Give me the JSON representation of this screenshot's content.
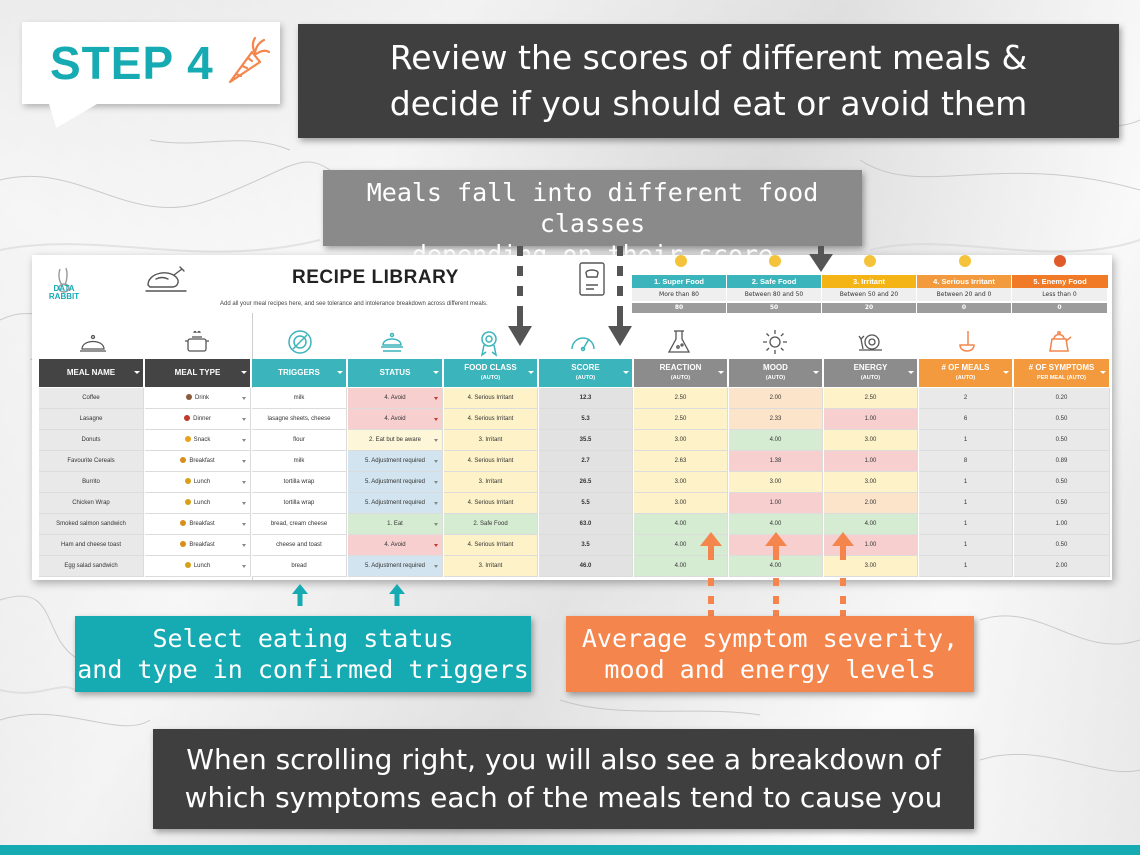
{
  "step": {
    "label": "STEP 4",
    "icon": "carrot-icon"
  },
  "banner_top": {
    "line1": "Review the scores of different meals &",
    "line2": "decide if you should eat or avoid them"
  },
  "callout_classes": {
    "line1": "Meals fall into different food classes",
    "line2": "depending on their score"
  },
  "callout_status": {
    "line1": "Select eating status",
    "line2": "and type in confirmed triggers"
  },
  "callout_average": {
    "line1": "Average symptom severity,",
    "line2": "mood and energy levels"
  },
  "banner_bottom": {
    "line1": "When scrolling right, you will also see a breakdown of",
    "line2": "which symptoms each of the meals tend to cause you"
  },
  "sheet": {
    "logo_text_1": "DATA",
    "logo_text_2": "RABBIT",
    "title": "RECIPE LIBRARY",
    "subtitle": "Add all your meal recipes here, and see tolerance and intolerance breakdown across different meals."
  },
  "legend": [
    {
      "head": "1. Super Food",
      "desc": "More than 80",
      "value": "80",
      "color": "#3cb4bb"
    },
    {
      "head": "2. Safe Food",
      "desc": "Between 80 and 50",
      "value": "50",
      "color": "#3cb4bb"
    },
    {
      "head": "3. Irritant",
      "desc": "Between 50 and 20",
      "value": "20",
      "color": "#f5b416"
    },
    {
      "head": "4. Serious Irritant",
      "desc": "Between 20 and 0",
      "value": "0",
      "color": "#f39a3f"
    },
    {
      "head": "5. Enemy Food",
      "desc": "Less than 0",
      "value": "0",
      "color": "#f07a26"
    }
  ],
  "columns": {
    "meal_name": "MEAL NAME",
    "meal_type": "MEAL TYPE",
    "triggers": "TRIGGERS",
    "status": "STATUS",
    "food_class": "FOOD CLASS",
    "score": "SCORE",
    "reaction": "REACTION",
    "mood": "MOOD",
    "energy": "ENERGY",
    "num_meals": "# OF MEALS",
    "num_symptoms": "# OF SYMPTOMS",
    "num_symptoms_2": "PER MEAL",
    "auto": "(AUTO)"
  },
  "rows": [
    {
      "name": "Coffee",
      "type": "Drink",
      "triggers": "milk",
      "status": "4. Avoid",
      "food_class": "4. Serious Irritant",
      "score": "12.3",
      "reaction": "2.50",
      "mood": "2.00",
      "energy": "2.50",
      "meals": "2",
      "symptoms": "0.20"
    },
    {
      "name": "Lasagne",
      "type": "Dinner",
      "triggers": "lasagne sheets, cheese",
      "status": "4. Avoid",
      "food_class": "4. Serious Irritant",
      "score": "5.3",
      "reaction": "2.50",
      "mood": "2.33",
      "energy": "1.00",
      "meals": "6",
      "symptoms": "0.50"
    },
    {
      "name": "Donuts",
      "type": "Snack",
      "triggers": "flour",
      "status": "2. Eat but be aware",
      "food_class": "3. Irritant",
      "score": "35.5",
      "reaction": "3.00",
      "mood": "4.00",
      "energy": "3.00",
      "meals": "1",
      "symptoms": "0.50"
    },
    {
      "name": "Favourite Cereals",
      "type": "Breakfast",
      "triggers": "milk",
      "status": "5. Adjustment required",
      "food_class": "4. Serious Irritant",
      "score": "2.7",
      "reaction": "2.63",
      "mood": "1.38",
      "energy": "1.00",
      "meals": "8",
      "symptoms": "0.89"
    },
    {
      "name": "Burrito",
      "type": "Lunch",
      "triggers": "tortilla wrap",
      "status": "5. Adjustment required",
      "food_class": "3. Irritant",
      "score": "26.5",
      "reaction": "3.00",
      "mood": "3.00",
      "energy": "3.00",
      "meals": "1",
      "symptoms": "0.50"
    },
    {
      "name": "Chicken Wrap",
      "type": "Lunch",
      "triggers": "tortilla wrap",
      "status": "5. Adjustment required",
      "food_class": "4. Serious Irritant",
      "score": "5.5",
      "reaction": "3.00",
      "mood": "1.00",
      "energy": "2.00",
      "meals": "1",
      "symptoms": "0.50"
    },
    {
      "name": "Smoked salmon sandwich",
      "type": "Breakfast",
      "triggers": "bread, cream cheese",
      "status": "1. Eat",
      "food_class": "2. Safe Food",
      "score": "63.0",
      "reaction": "4.00",
      "mood": "4.00",
      "energy": "4.00",
      "meals": "1",
      "symptoms": "1.00"
    },
    {
      "name": "Ham and cheese toast",
      "type": "Breakfast",
      "triggers": "cheese and toast",
      "status": "4. Avoid",
      "food_class": "4. Serious Irritant",
      "score": "3.5",
      "reaction": "4.00",
      "mood": "",
      "energy": "1.00",
      "meals": "1",
      "symptoms": "0.50"
    },
    {
      "name": "Egg salad sandwich",
      "type": "Lunch",
      "triggers": "bread",
      "status": "5. Adjustment required",
      "food_class": "3. Irritant",
      "score": "46.0",
      "reaction": "4.00",
      "mood": "4.00",
      "energy": "3.00",
      "meals": "1",
      "symptoms": "2.00"
    }
  ],
  "colors": {
    "teal": "#16aab3",
    "orange": "#f3854d",
    "dark": "#3f3f3f"
  }
}
